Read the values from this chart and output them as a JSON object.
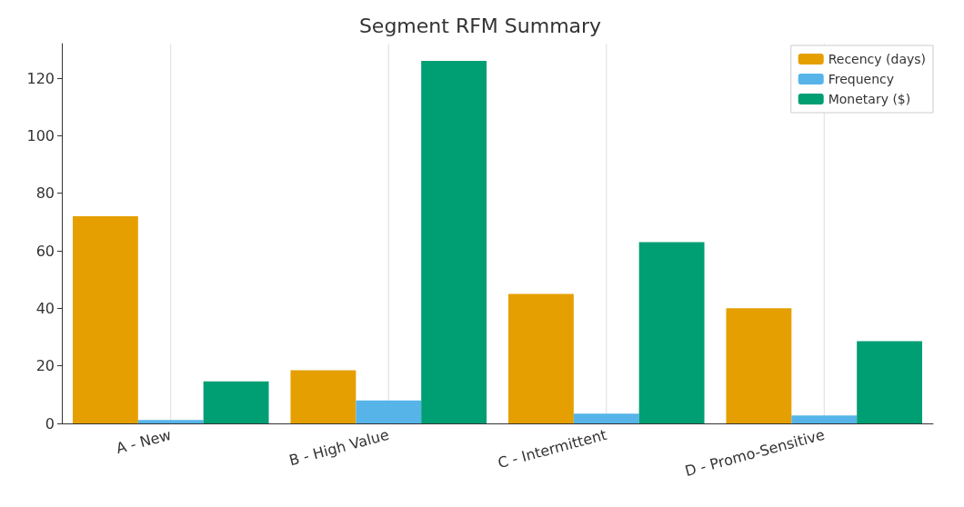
{
  "chart_data": {
    "type": "bar",
    "title": "Segment RFM Summary",
    "categories": [
      "A - New",
      "B - High Value",
      "C - Intermittent",
      "D - Promo-Sensitive"
    ],
    "series": [
      {
        "name": "Recency (days)",
        "color": "#e69f00",
        "values": [
          72,
          18.5,
          45,
          40
        ]
      },
      {
        "name": "Frequency",
        "color": "#56b4e9",
        "values": [
          1.2,
          8,
          3.4,
          2.8
        ]
      },
      {
        "name": "Monetary ($)",
        "color": "#009e73",
        "values": [
          14.6,
          126,
          63,
          28.6
        ]
      }
    ],
    "ylim": [
      0,
      132
    ],
    "yticks": [
      0,
      20,
      40,
      60,
      80,
      100,
      120
    ],
    "grid": "x",
    "legend": "top right"
  }
}
